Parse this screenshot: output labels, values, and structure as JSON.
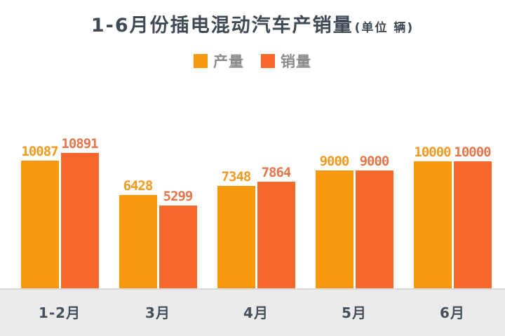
{
  "title": {
    "main": "1-6月份插电混动汽车产销量",
    "unit": "(单位 辆)"
  },
  "chart_data": {
    "type": "bar",
    "title": "1-6月份插电混动汽车产销量(单位 辆)",
    "unit_label": "辆",
    "categories": [
      "1-2月",
      "3月",
      "4月",
      "5月",
      "6月"
    ],
    "series": [
      {
        "name": "产量",
        "color": "#f8980c",
        "label_color": "#f39a20",
        "values": [
          10087,
          6428,
          7348,
          9000,
          10000
        ]
      },
      {
        "name": "销量",
        "color": "#f8682a",
        "label_color": "#e5764c",
        "values": [
          10891,
          5299,
          7864,
          9000,
          10000
        ]
      }
    ],
    "ylim": [
      0,
      11000
    ],
    "grid": false,
    "legend_position": "top",
    "value_labels": true,
    "xaxis_strip_color": "#ebebeb",
    "title_color": "#3f4a54",
    "axis_label_color": "#47505a",
    "legend_text_color": "#8c8c8c"
  }
}
